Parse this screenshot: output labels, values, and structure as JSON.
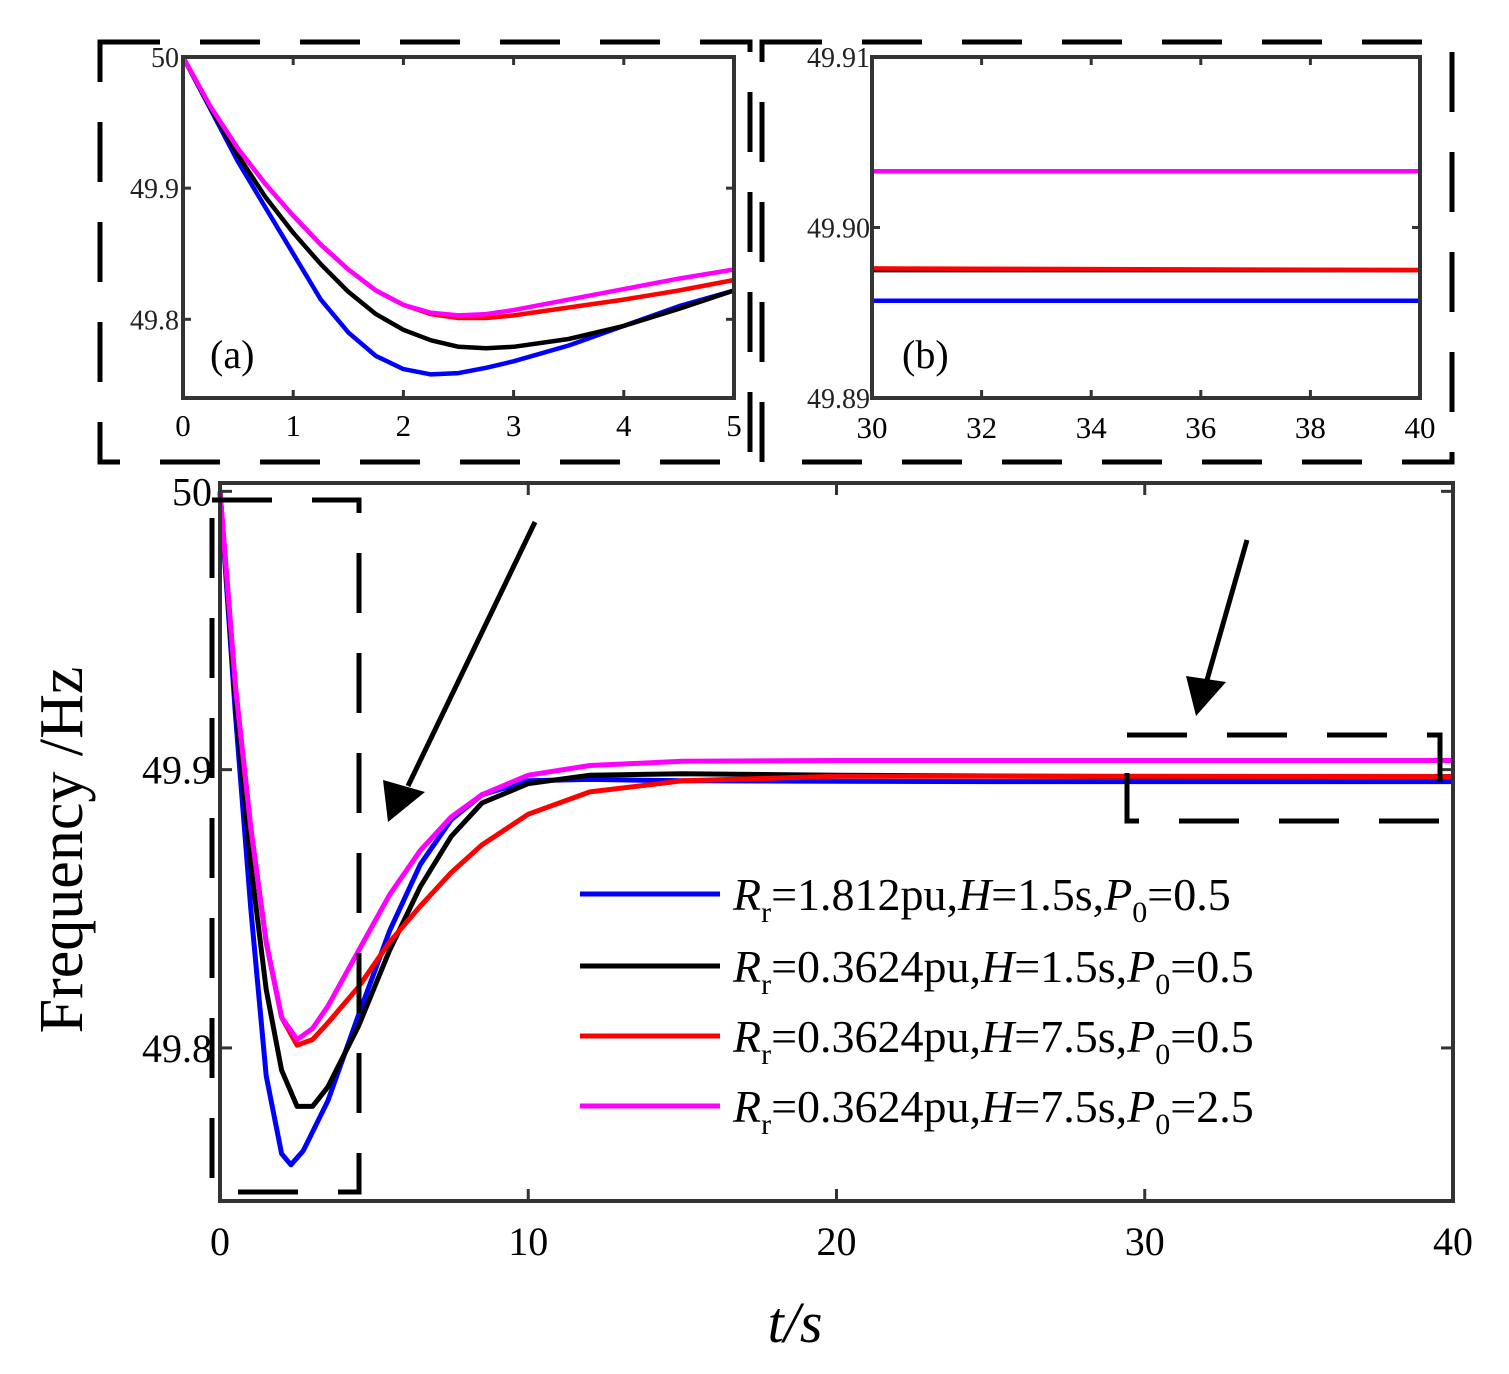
{
  "chart_data": [
    {
      "id": "inset-a",
      "type": "line",
      "panel_label": "(a)",
      "xlim": [
        0,
        5
      ],
      "ylim": [
        49.74,
        50.0
      ],
      "xticks": [
        "0",
        "1",
        "2",
        "3",
        "4",
        "5"
      ],
      "yticks": [
        "49.8",
        "49.9",
        "50"
      ],
      "series": [
        {
          "name": "blue",
          "color": "#0000ff",
          "x": [
            0,
            0.25,
            0.5,
            0.75,
            1,
            1.25,
            1.5,
            1.75,
            2,
            2.25,
            2.5,
            2.75,
            3,
            3.5,
            4,
            4.5,
            5
          ],
          "y": [
            50.0,
            49.96,
            49.92,
            49.885,
            49.85,
            49.815,
            49.79,
            49.772,
            49.762,
            49.758,
            49.759,
            49.763,
            49.768,
            49.78,
            49.795,
            49.81,
            49.822
          ]
        },
        {
          "name": "black",
          "color": "#000000",
          "x": [
            0,
            0.25,
            0.5,
            0.75,
            1,
            1.25,
            1.5,
            1.75,
            2,
            2.25,
            2.5,
            2.75,
            3,
            3.5,
            4,
            4.5,
            5
          ],
          "y": [
            50.0,
            49.961,
            49.925,
            49.893,
            49.866,
            49.842,
            49.821,
            49.804,
            49.792,
            49.784,
            49.779,
            49.778,
            49.779,
            49.785,
            49.795,
            49.808,
            49.822
          ]
        },
        {
          "name": "red",
          "color": "#ff0000",
          "x": [
            0,
            0.25,
            0.5,
            0.75,
            1,
            1.25,
            1.5,
            1.75,
            2,
            2.25,
            2.5,
            2.75,
            3,
            3.5,
            4,
            4.5,
            5
          ],
          "y": [
            50.0,
            49.962,
            49.93,
            49.903,
            49.879,
            49.857,
            49.838,
            49.822,
            49.811,
            49.804,
            49.801,
            49.801,
            49.803,
            49.809,
            49.815,
            49.822,
            49.83
          ]
        },
        {
          "name": "magenta",
          "color": "#ff00ff",
          "x": [
            0,
            0.25,
            0.5,
            0.75,
            1,
            1.25,
            1.5,
            1.75,
            2,
            2.25,
            2.5,
            2.75,
            3,
            3.5,
            4,
            4.5,
            5
          ],
          "y": [
            50.0,
            49.962,
            49.93,
            49.903,
            49.879,
            49.857,
            49.838,
            49.822,
            49.811,
            49.805,
            49.803,
            49.804,
            49.807,
            49.815,
            49.823,
            49.831,
            49.838
          ]
        }
      ]
    },
    {
      "id": "inset-b",
      "type": "line",
      "panel_label": "(b)",
      "xlim": [
        30,
        40
      ],
      "ylim": [
        49.89,
        49.91
      ],
      "xticks": [
        "30",
        "32",
        "34",
        "36",
        "38",
        "40"
      ],
      "yticks": [
        "49.89",
        "49.90",
        "49.91"
      ],
      "series": [
        {
          "name": "magenta",
          "color": "#ff00ff",
          "x": [
            30,
            40
          ],
          "y": [
            49.9033,
            49.9033
          ]
        },
        {
          "name": "black",
          "color": "#000000",
          "x": [
            30,
            40
          ],
          "y": [
            49.8975,
            49.8975
          ]
        },
        {
          "name": "red",
          "color": "#ff0000",
          "x": [
            30,
            40
          ],
          "y": [
            49.8976,
            49.8975
          ]
        },
        {
          "name": "blue",
          "color": "#0000ff",
          "x": [
            30,
            40
          ],
          "y": [
            49.8957,
            49.8957
          ]
        }
      ]
    },
    {
      "id": "main",
      "type": "line",
      "xlabel": "t/s",
      "ylabel": "Frequency /Hz",
      "xlim": [
        0,
        40
      ],
      "ylim": [
        49.745,
        50.003
      ],
      "xticks": [
        "0",
        "10",
        "20",
        "30",
        "40"
      ],
      "yticks": [
        "49.8",
        "49.9",
        "50"
      ],
      "series": [
        {
          "name": "blue",
          "color": "#0000ff",
          "legend": {
            "main": "R",
            "sub": "r",
            "eq": "=1.812pu,",
            "h": "H",
            "heq": "=1.5s,",
            "p": "P",
            "psub": "0",
            "peq": "=0.5"
          },
          "x": [
            0,
            0.5,
            1,
            1.5,
            2,
            2.3,
            2.7,
            3.5,
            4.5,
            5.5,
            6.5,
            7.5,
            8.5,
            10,
            12,
            15,
            20,
            25,
            30,
            40
          ],
          "y": [
            50.0,
            49.92,
            49.85,
            49.79,
            49.762,
            49.758,
            49.763,
            49.781,
            49.812,
            49.842,
            49.866,
            49.882,
            49.891,
            49.896,
            49.8965,
            49.896,
            49.8958,
            49.8957,
            49.8957,
            49.8957
          ]
        },
        {
          "name": "black",
          "color": "#000000",
          "legend": {
            "main": "R",
            "sub": "r",
            "eq": "=0.3624pu,",
            "h": "H",
            "heq": "=1.5s,",
            "p": "P",
            "psub": "0",
            "peq": "=0.5"
          },
          "x": [
            0,
            0.5,
            1,
            1.5,
            2,
            2.5,
            3,
            3.5,
            4.5,
            5.5,
            6.5,
            7.5,
            8.5,
            10,
            12,
            15,
            20,
            25,
            30,
            40
          ],
          "y": [
            50.0,
            49.925,
            49.866,
            49.821,
            49.792,
            49.779,
            49.779,
            49.786,
            49.808,
            49.835,
            49.858,
            49.876,
            49.888,
            49.895,
            49.898,
            49.8985,
            49.898,
            49.8977,
            49.8975,
            49.8975
          ]
        },
        {
          "name": "red",
          "color": "#ff0000",
          "legend": {
            "main": "R",
            "sub": "r",
            "eq": "=0.3624pu,",
            "h": "H",
            "heq": "=7.5s,",
            "p": "P",
            "psub": "0",
            "peq": "=0.5"
          },
          "x": [
            0,
            0.5,
            1,
            1.5,
            2,
            2.5,
            3,
            3.5,
            4.5,
            5.5,
            6.5,
            7.5,
            8.5,
            10,
            12,
            15,
            20,
            25,
            30,
            40
          ],
          "y": [
            50.0,
            49.93,
            49.879,
            49.838,
            49.811,
            49.801,
            49.803,
            49.809,
            49.822,
            49.838,
            49.851,
            49.863,
            49.873,
            49.884,
            49.892,
            49.896,
            49.8976,
            49.8976,
            49.8976,
            49.8975
          ]
        },
        {
          "name": "magenta",
          "color": "#ff00ff",
          "legend": {
            "main": "R",
            "sub": "r",
            "eq": "=0.3624pu,",
            "h": "H",
            "heq": "=7.5s,",
            "p": "P",
            "psub": "0",
            "peq": "=2.5"
          },
          "x": [
            0,
            0.5,
            1,
            1.5,
            2,
            2.5,
            3,
            3.5,
            4.5,
            5.5,
            6.5,
            7.5,
            8.5,
            10,
            12,
            15,
            20,
            25,
            30,
            40
          ],
          "y": [
            50.0,
            49.93,
            49.879,
            49.838,
            49.811,
            49.803,
            49.807,
            49.815,
            49.835,
            49.855,
            49.871,
            49.883,
            49.891,
            49.898,
            49.9015,
            49.903,
            49.9033,
            49.9033,
            49.9033,
            49.9033
          ]
        }
      ]
    }
  ]
}
